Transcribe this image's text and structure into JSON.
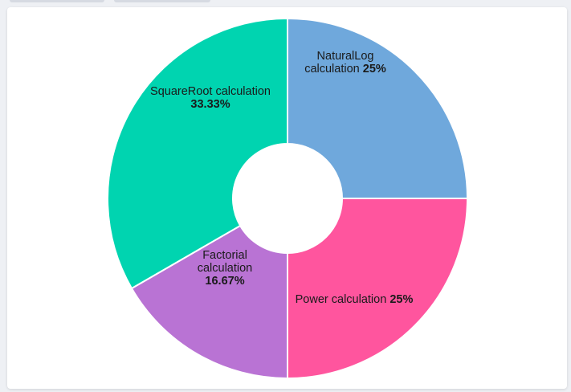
{
  "chart_data": {
    "type": "pie",
    "variant": "donut",
    "title": "",
    "slices": [
      {
        "label": "NaturalLog calculation",
        "value": 25,
        "display": "25%",
        "color": "#6fa8dc"
      },
      {
        "label": "Power calculation",
        "value": 25,
        "display": "25%",
        "color": "#ff559e"
      },
      {
        "label": "Factorial calculation",
        "value": 16.67,
        "display": "16.67%",
        "color": "#b973d4"
      },
      {
        "label": "SquareRoot calculation",
        "value": 33.33,
        "display": "33.33%",
        "color": "#00d4b0"
      }
    ],
    "legend": "none"
  }
}
